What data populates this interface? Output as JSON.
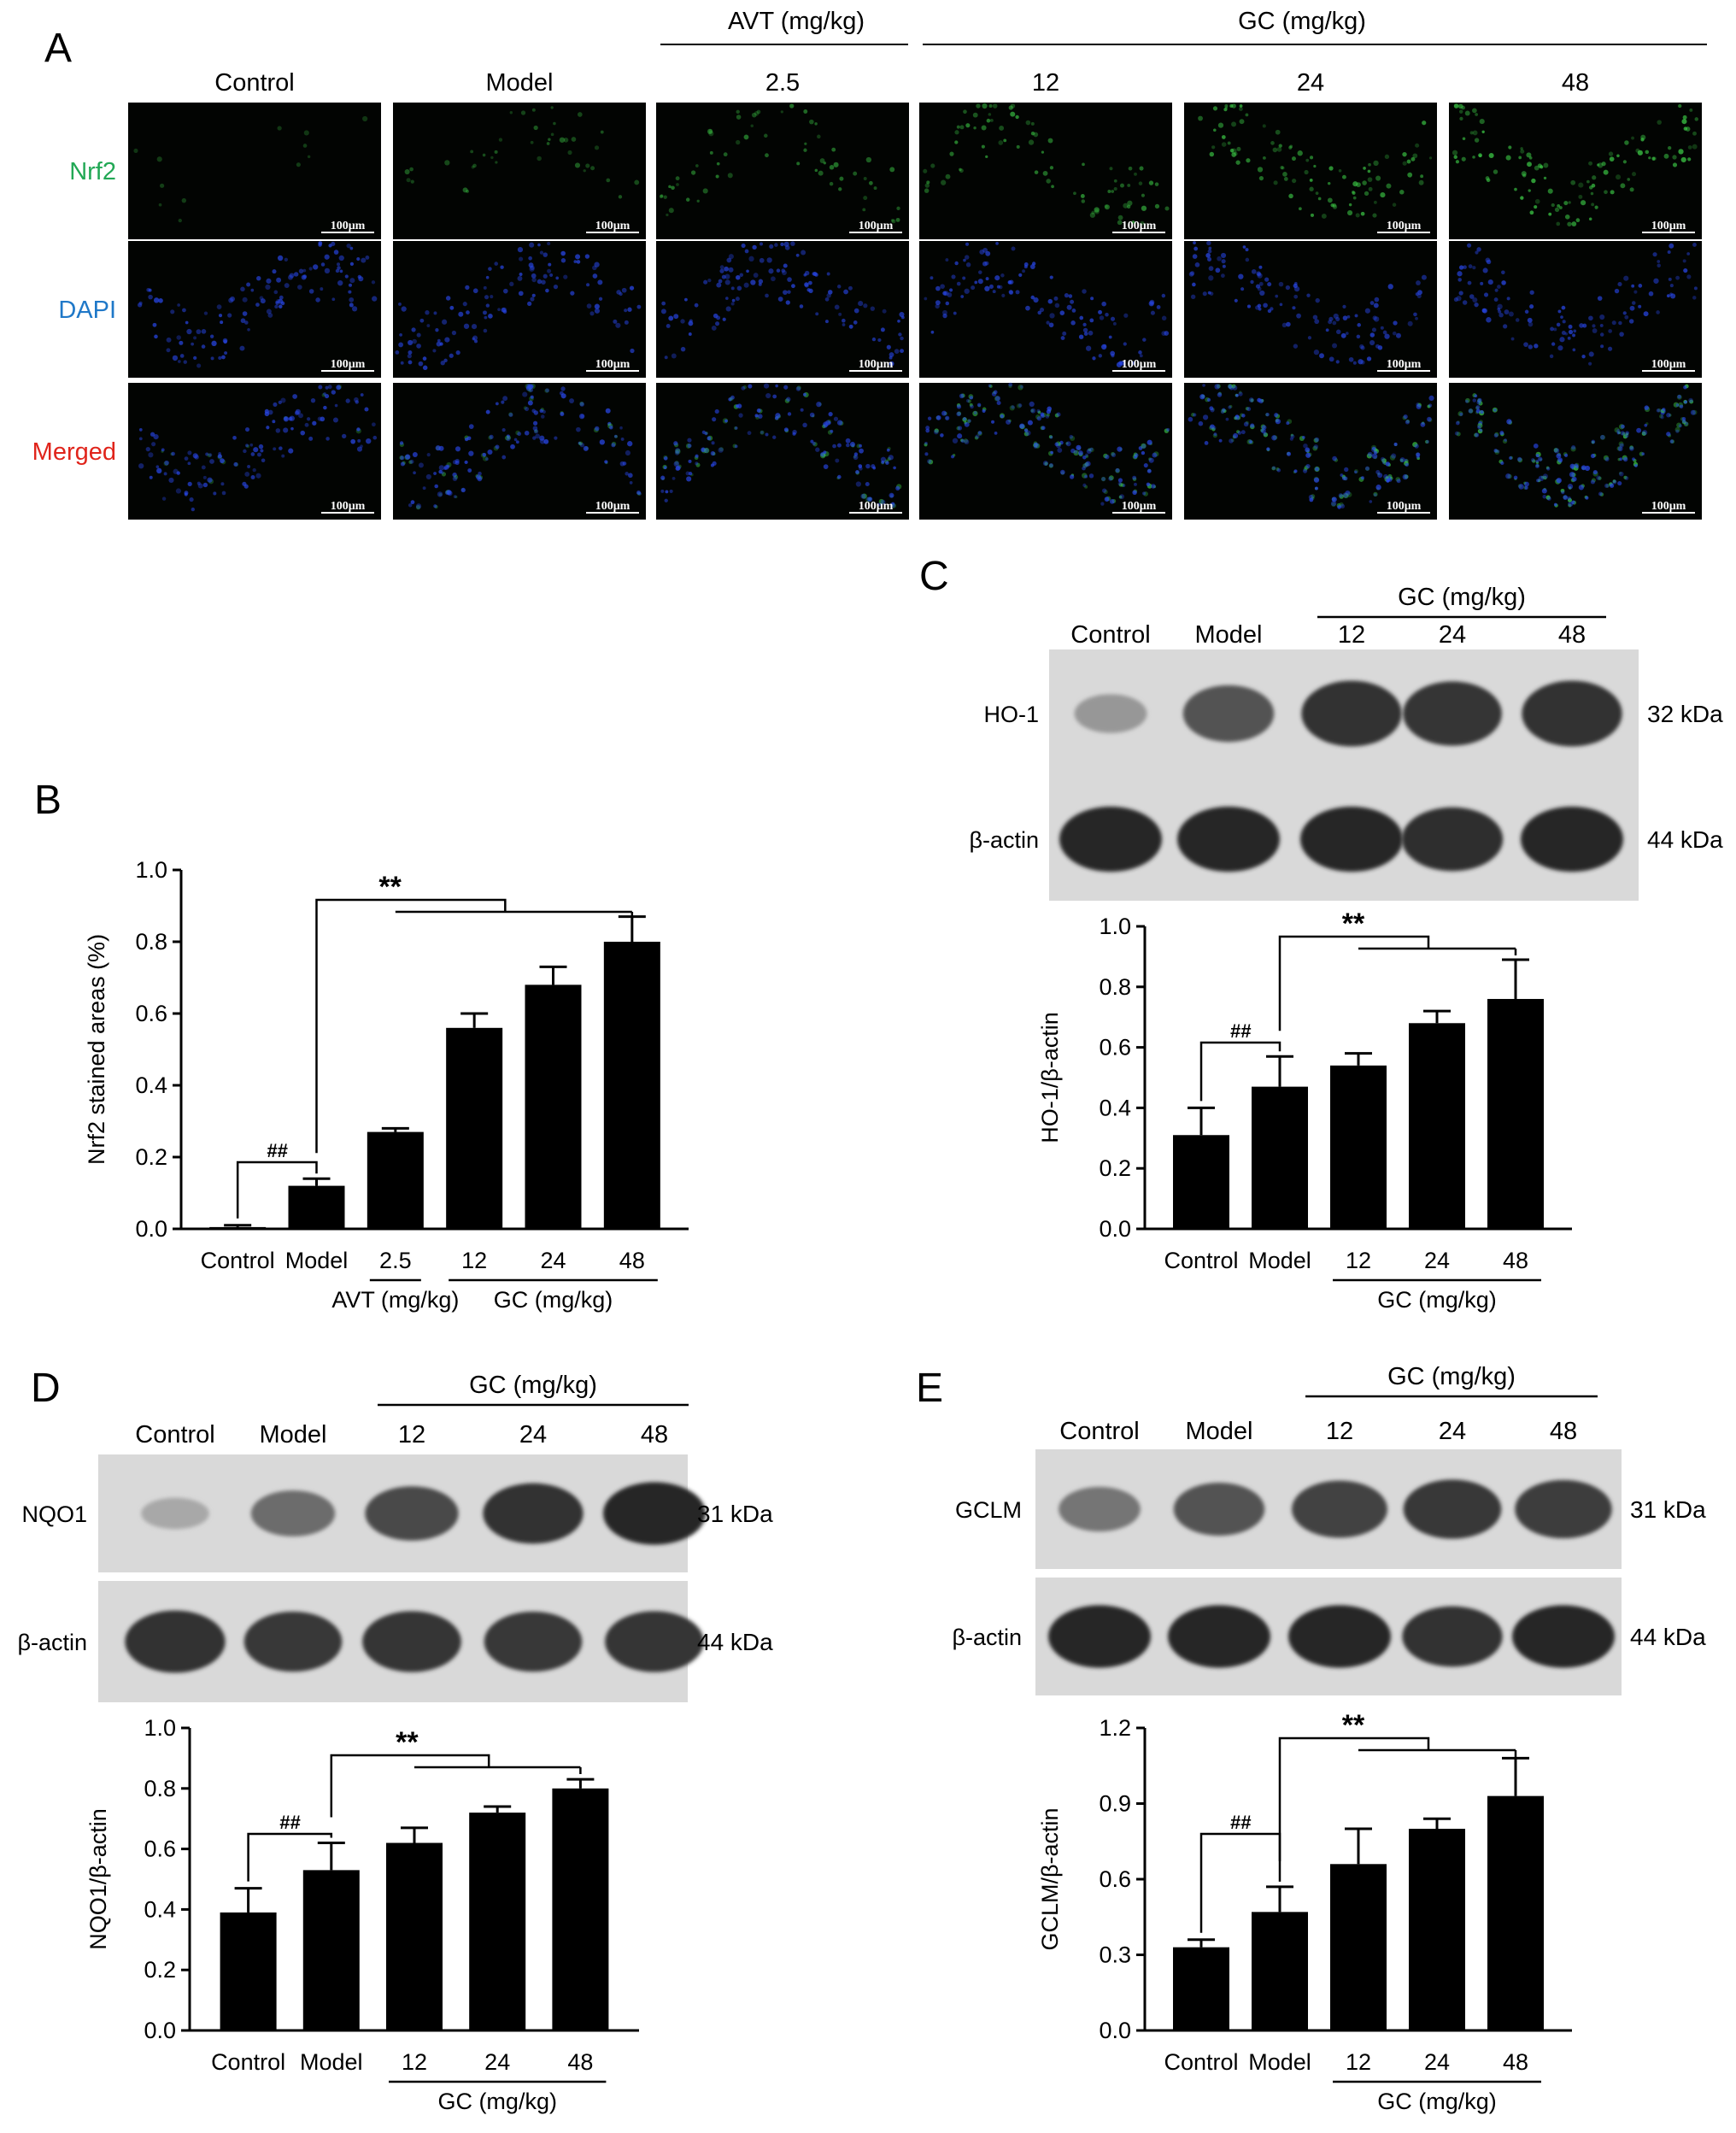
{
  "panels": {
    "A": {
      "label": "A",
      "avt_group_label": "AVT (mg/kg)",
      "gc_group_label": "GC (mg/kg)",
      "columns": [
        "Control",
        "Model",
        "2.5",
        "12",
        "24",
        "48"
      ],
      "rows": [
        {
          "label": "Nrf2",
          "color": "#22a855"
        },
        {
          "label": "DAPI",
          "color": "#1f78c8"
        },
        {
          "label": "Merged",
          "color": "#e0241b"
        }
      ],
      "scale_bar": "100μm",
      "nrf2_intensity": [
        0.1,
        0.35,
        0.55,
        0.75,
        0.85,
        0.95
      ]
    },
    "B": {
      "label": "B",
      "dose_groups": [
        {
          "text": "AVT (mg/kg)",
          "from": 2,
          "to": 2
        },
        {
          "text": "GC (mg/kg)",
          "from": 3,
          "to": 5
        }
      ]
    },
    "C": {
      "label": "C",
      "gc_group_label": "GC (mg/kg)",
      "lanes": [
        "Control",
        "Model",
        "12",
        "24",
        "48"
      ],
      "blots": [
        {
          "name": "HO-1",
          "kda": "32 kDa",
          "intensity": [
            0.35,
            0.75,
            0.95,
            0.92,
            0.95
          ]
        },
        {
          "name": "β-actin",
          "kda": "44 kDa",
          "intensity": [
            1,
            1,
            1,
            0.97,
            1
          ]
        }
      ],
      "dose_group": {
        "text": "GC (mg/kg)",
        "from": 2,
        "to": 4
      }
    },
    "D": {
      "label": "D",
      "gc_group_label": "GC (mg/kg)",
      "lanes": [
        "Control",
        "Model",
        "12",
        "24",
        "48"
      ],
      "blots": [
        {
          "name": "NQO1",
          "kda": "31 kDa",
          "intensity": [
            0.25,
            0.6,
            0.8,
            0.95,
            1
          ]
        },
        {
          "name": "β-actin",
          "kda": "44 kDa",
          "intensity": [
            0.95,
            0.9,
            0.92,
            0.9,
            0.92
          ]
        }
      ],
      "dose_group": {
        "text": "GC (mg/kg)",
        "from": 2,
        "to": 4
      }
    },
    "E": {
      "label": "E",
      "gc_group_label": "GC (mg/kg)",
      "lanes": [
        "Control",
        "Model",
        "12",
        "24",
        "48"
      ],
      "blots": [
        {
          "name": "GCLM",
          "kda": "31 kDa",
          "intensity": [
            0.55,
            0.75,
            0.85,
            0.9,
            0.88
          ]
        },
        {
          "name": "β-actin",
          "kda": "44 kDa",
          "intensity": [
            1,
            1,
            1,
            0.95,
            1
          ]
        }
      ],
      "dose_group": {
        "text": "GC (mg/kg)",
        "from": 2,
        "to": 4
      }
    }
  },
  "chart_data": [
    {
      "id": "B",
      "type": "bar",
      "ylabel": "Nrf2 stained areas (%)",
      "categories": [
        "Control",
        "Model",
        "2.5",
        "12",
        "24",
        "48"
      ],
      "values": [
        0.005,
        0.12,
        0.27,
        0.56,
        0.68,
        0.8
      ],
      "errors": [
        0.005,
        0.02,
        0.01,
        0.04,
        0.05,
        0.07
      ],
      "ylim": [
        0,
        1.0
      ],
      "yticks": [
        "0.0",
        "0.2",
        "0.4",
        "0.6",
        "0.8",
        "1.0"
      ],
      "annotations": {
        "hash": "##",
        "star": "**"
      }
    },
    {
      "id": "C",
      "type": "bar",
      "ylabel": "HO-1/β-actin",
      "categories": [
        "Control",
        "Model",
        "12",
        "24",
        "48"
      ],
      "values": [
        0.31,
        0.47,
        0.54,
        0.68,
        0.76
      ],
      "errors": [
        0.09,
        0.1,
        0.04,
        0.04,
        0.13
      ],
      "ylim": [
        0,
        1.0
      ],
      "yticks": [
        "0.0",
        "0.2",
        "0.4",
        "0.6",
        "0.8",
        "1.0"
      ],
      "annotations": {
        "hash": "##",
        "star": "**"
      }
    },
    {
      "id": "D",
      "type": "bar",
      "ylabel": "NQO1/β-actin",
      "categories": [
        "Control",
        "Model",
        "12",
        "24",
        "48"
      ],
      "values": [
        0.39,
        0.53,
        0.62,
        0.72,
        0.8
      ],
      "errors": [
        0.08,
        0.09,
        0.05,
        0.02,
        0.03
      ],
      "ylim": [
        0,
        1.0
      ],
      "yticks": [
        "0.0",
        "0.2",
        "0.4",
        "0.6",
        "0.8",
        "1.0"
      ],
      "annotations": {
        "hash": "##",
        "star": "**"
      }
    },
    {
      "id": "E",
      "type": "bar",
      "ylabel": "GCLM/β-actin",
      "categories": [
        "Control",
        "Model",
        "12",
        "24",
        "48"
      ],
      "values": [
        0.33,
        0.47,
        0.66,
        0.8,
        0.93
      ],
      "errors": [
        0.03,
        0.1,
        0.14,
        0.04,
        0.15
      ],
      "ylim": [
        0,
        1.2
      ],
      "yticks": [
        "0.0",
        "0.3",
        "0.6",
        "0.9",
        "1.2"
      ],
      "annotations": {
        "hash": "##",
        "star": "**"
      }
    }
  ]
}
